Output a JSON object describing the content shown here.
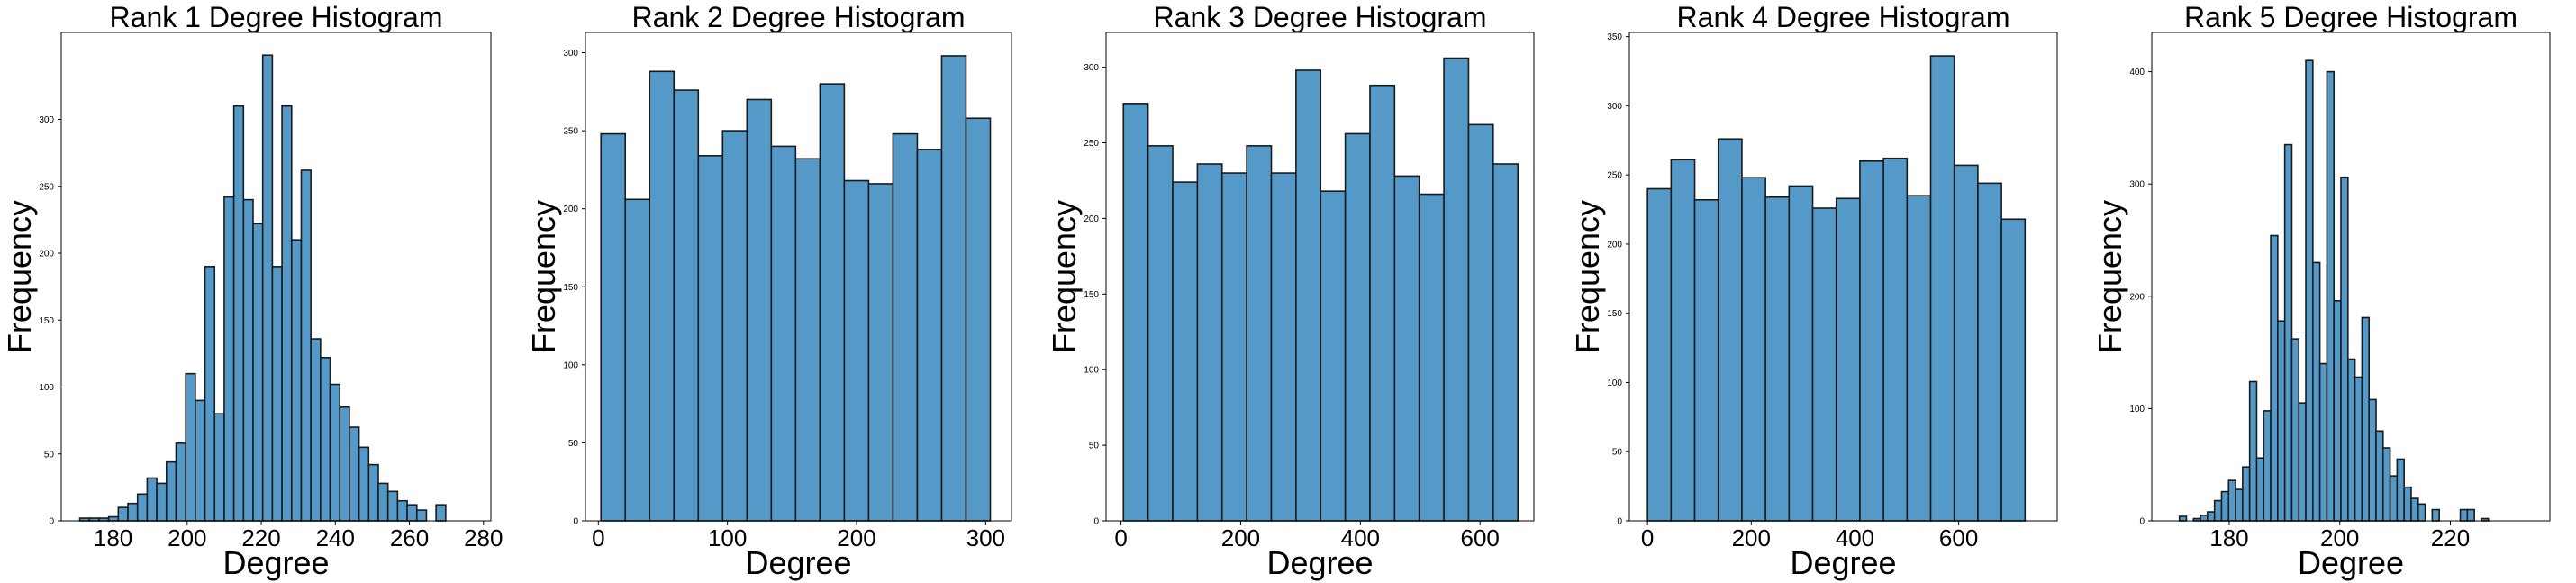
{
  "figure": {
    "bar_color": "#5499c7",
    "edge_color": "#1a1a1a"
  },
  "chart_data": [
    {
      "type": "bar",
      "title": "Rank 1 Degree Histogram",
      "xlabel": "Degree",
      "ylabel": "Frequency",
      "xlim": [
        166,
        282
      ],
      "ylim": [
        0,
        365
      ],
      "xticks": [
        180,
        200,
        220,
        240,
        260,
        280
      ],
      "yticks": [
        0,
        50,
        100,
        150,
        200,
        250,
        300
      ],
      "bin_start": 171,
      "bin_width": 2.6,
      "values": [
        2,
        2,
        2,
        3,
        10,
        13,
        20,
        32,
        28,
        44,
        58,
        110,
        90,
        190,
        80,
        242,
        310,
        240,
        222,
        348,
        190,
        310,
        210,
        262,
        136,
        122,
        102,
        85,
        70,
        55,
        42,
        28,
        22,
        15,
        12,
        8,
        0,
        12
      ]
    },
    {
      "type": "bar",
      "title": "Rank 2 Degree Histogram",
      "xlabel": "Degree",
      "ylabel": "Frequency",
      "xlim": [
        -10,
        320
      ],
      "ylim": [
        0,
        313
      ],
      "xticks": [
        0,
        100,
        200,
        300
      ],
      "yticks": [
        0,
        50,
        100,
        150,
        200,
        250,
        300
      ],
      "bin_start": 2,
      "bin_width": 18.85,
      "values": [
        248,
        206,
        288,
        276,
        234,
        250,
        270,
        240,
        232,
        280,
        218,
        216,
        248,
        238,
        298,
        258
      ]
    },
    {
      "type": "bar",
      "title": "Rank 3 Degree Histogram",
      "xlabel": "Degree",
      "ylabel": "Frequency",
      "xlim": [
        -25,
        690
      ],
      "ylim": [
        0,
        323
      ],
      "xticks": [
        0,
        200,
        400,
        600
      ],
      "yticks": [
        0,
        50,
        100,
        150,
        200,
        250,
        300
      ],
      "bin_start": 4,
      "bin_width": 41.2,
      "values": [
        276,
        248,
        224,
        236,
        230,
        248,
        230,
        298,
        218,
        256,
        288,
        228,
        216,
        306,
        262,
        236
      ]
    },
    {
      "type": "bar",
      "title": "Rank 4 Degree Histogram",
      "xlabel": "Degree",
      "ylabel": "Frequency",
      "xlim": [
        -35,
        790
      ],
      "ylim": [
        0,
        353
      ],
      "xticks": [
        0,
        200,
        400,
        600
      ],
      "yticks": [
        0,
        50,
        100,
        150,
        200,
        250,
        300,
        350
      ],
      "bin_start": 0,
      "bin_width": 45.5,
      "values": [
        240,
        261,
        232,
        276,
        248,
        234,
        242,
        226,
        233,
        260,
        262,
        235,
        336,
        257,
        244,
        218
      ]
    },
    {
      "type": "bar",
      "title": "Rank 5 Degree Histogram",
      "xlabel": "Degree",
      "ylabel": "Frequency",
      "xlim": [
        166,
        238
      ],
      "ylim": [
        0,
        435
      ],
      "xticks": [
        180,
        200,
        220
      ],
      "yticks": [
        0,
        100,
        200,
        300,
        400
      ],
      "bin_start": 171,
      "bin_width": 1.27,
      "values": [
        4,
        0,
        2,
        5,
        8,
        18,
        26,
        36,
        28,
        48,
        124,
        56,
        98,
        254,
        178,
        335,
        162,
        105,
        410,
        230,
        140,
        400,
        196,
        306,
        144,
        128,
        181,
        108,
        80,
        65,
        40,
        55,
        30,
        20,
        15,
        0,
        10,
        0,
        0,
        0,
        10,
        10,
        0,
        2
      ]
    }
  ]
}
